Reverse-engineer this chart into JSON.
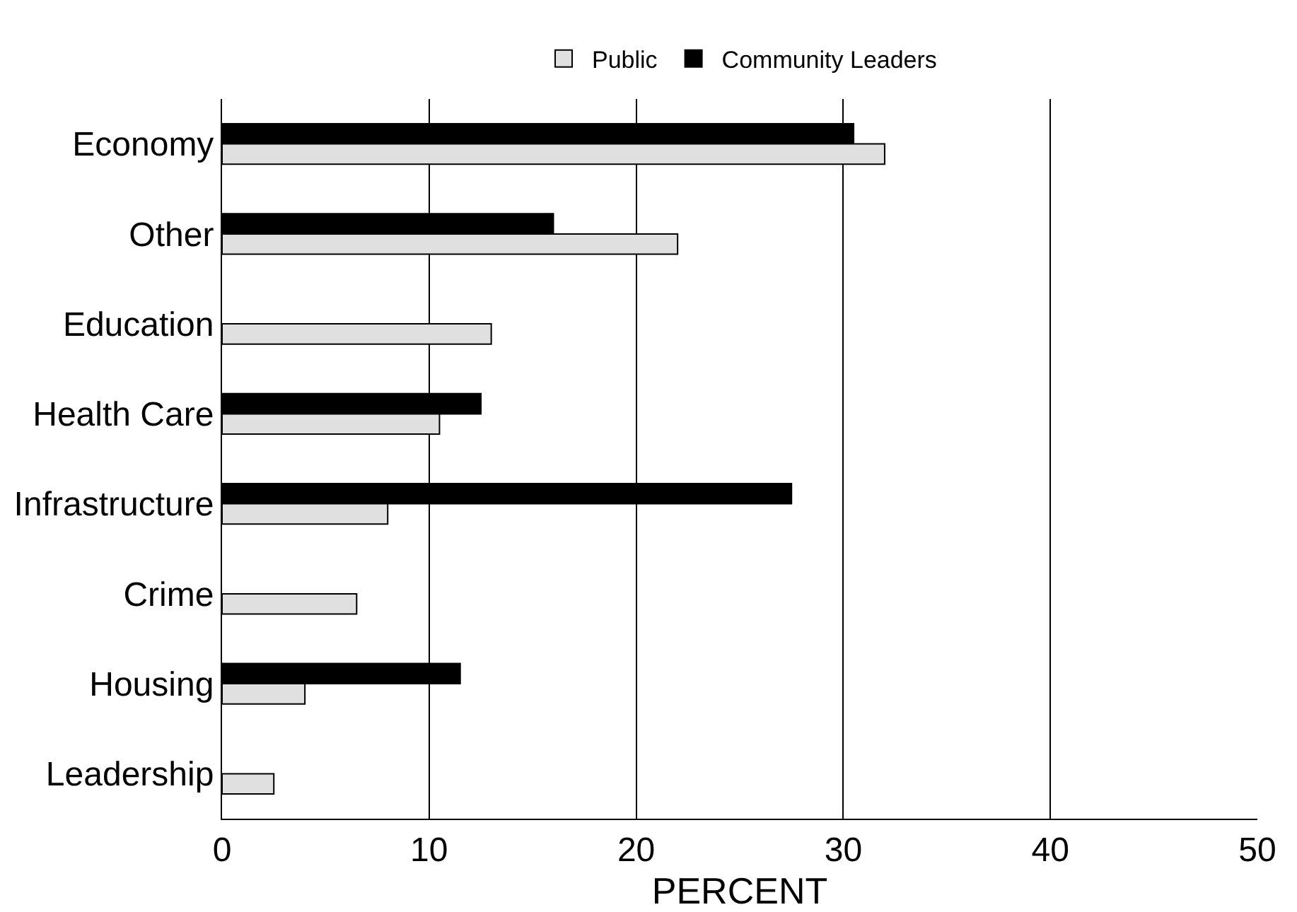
{
  "chart_data": {
    "type": "bar",
    "orientation": "horizontal",
    "xlabel": "PERCENT",
    "categories": [
      "Economy",
      "Other",
      "Education",
      "Health Care",
      "Infrastructure",
      "Crime",
      "Housing",
      "Leadership"
    ],
    "series": [
      {
        "name": "Public",
        "color": "#e0e0e0",
        "values": [
          32,
          22,
          13,
          10.5,
          8,
          6.5,
          4,
          2.5
        ]
      },
      {
        "name": "Community Leaders",
        "color": "#000000",
        "values": [
          30.5,
          16,
          null,
          12.5,
          27.5,
          null,
          11.5,
          null
        ]
      }
    ],
    "xlim": [
      0,
      50
    ],
    "xticks": [
      0,
      10,
      20,
      30,
      40,
      50
    ],
    "grid": "x",
    "legend": "top"
  }
}
